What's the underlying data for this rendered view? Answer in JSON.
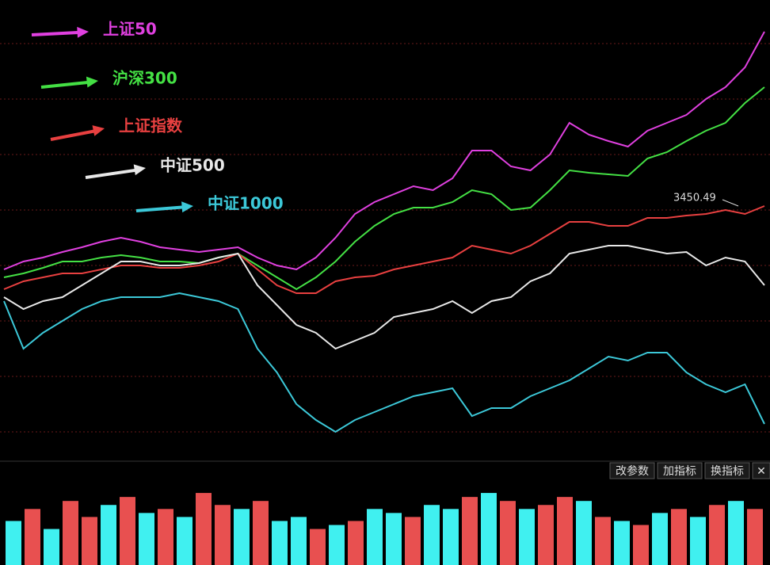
{
  "chart_data": [
    {
      "type": "line",
      "categories": [
        null,
        null,
        null,
        null,
        null,
        null,
        null,
        null,
        null,
        null,
        null,
        null,
        null,
        null,
        null,
        null,
        null,
        null,
        null,
        null,
        null,
        null,
        null,
        null,
        null,
        null,
        null,
        null,
        null,
        null,
        null,
        null,
        null,
        null,
        null,
        null,
        null,
        null,
        null,
        null
      ],
      "ylim": [
        0,
        560
      ],
      "yticks": [
        35,
        105,
        175,
        245,
        315,
        385,
        455,
        525
      ],
      "grid": true,
      "series": [
        {
          "name": "上证50",
          "color": "#e040e0",
          "values": [
            240,
            250,
            255,
            262,
            268,
            275,
            280,
            275,
            268,
            265,
            262,
            265,
            268,
            255,
            245,
            240,
            255,
            280,
            310,
            325,
            335,
            345,
            340,
            355,
            390,
            390,
            370,
            365,
            385,
            425,
            410,
            402,
            395,
            415,
            425,
            435,
            455,
            470,
            495,
            540
          ]
        },
        {
          "name": "沪深300",
          "color": "#44e044",
          "values": [
            230,
            235,
            242,
            250,
            250,
            255,
            258,
            255,
            250,
            250,
            248,
            255,
            260,
            245,
            230,
            215,
            230,
            250,
            275,
            295,
            310,
            318,
            318,
            325,
            340,
            335,
            315,
            318,
            340,
            365,
            362,
            360,
            358,
            380,
            388,
            402,
            415,
            425,
            450,
            470
          ]
        },
        {
          "name": "上证指数",
          "color": "#e84040",
          "values": [
            215,
            225,
            230,
            235,
            235,
            240,
            245,
            245,
            242,
            242,
            245,
            250,
            260,
            240,
            220,
            210,
            210,
            225,
            230,
            232,
            240,
            245,
            250,
            255,
            270,
            265,
            260,
            270,
            285,
            300,
            300,
            295,
            295,
            305,
            305,
            308,
            310,
            315,
            310,
            320
          ]
        },
        {
          "name": "中证500",
          "color": "#e8e8e8",
          "values": [
            205,
            190,
            200,
            205,
            220,
            235,
            250,
            250,
            245,
            245,
            248,
            255,
            260,
            220,
            195,
            170,
            160,
            140,
            150,
            160,
            180,
            185,
            190,
            200,
            185,
            200,
            205,
            225,
            235,
            260,
            265,
            270,
            270,
            265,
            260,
            262,
            245,
            255,
            250,
            220
          ]
        },
        {
          "name": "中证1000",
          "color": "#3cc8d8",
          "values": [
            200,
            140,
            160,
            175,
            190,
            200,
            205,
            205,
            205,
            210,
            205,
            200,
            190,
            140,
            110,
            70,
            50,
            35,
            50,
            60,
            70,
            80,
            85,
            90,
            55,
            65,
            65,
            80,
            90,
            100,
            115,
            130,
            125,
            135,
            135,
            110,
            95,
            85,
            95,
            45
          ]
        }
      ],
      "annotations": [
        {
          "text": "3450.49",
          "series": 2
        }
      ]
    },
    {
      "type": "bar",
      "ylim": [
        0,
        100
      ],
      "values": [
        55,
        70,
        45,
        80,
        60,
        75,
        85,
        65,
        70,
        60,
        90,
        75,
        70,
        80,
        55,
        60,
        45,
        50,
        55,
        70,
        65,
        60,
        75,
        70,
        85,
        90,
        80,
        70,
        75,
        85,
        80,
        60,
        55,
        50,
        65,
        70,
        60,
        75,
        80,
        70
      ],
      "colors": [
        "#40f0f0",
        "#e85050",
        "#40f0f0",
        "#e85050",
        "#e85050",
        "#40f0f0",
        "#e85050",
        "#40f0f0",
        "#e85050",
        "#40f0f0",
        "#e85050",
        "#e85050",
        "#40f0f0",
        "#e85050",
        "#40f0f0",
        "#40f0f0",
        "#e85050",
        "#40f0f0",
        "#e85050",
        "#40f0f0",
        "#40f0f0",
        "#e85050",
        "#40f0f0",
        "#40f0f0",
        "#e85050",
        "#40f0f0",
        "#e85050",
        "#40f0f0",
        "#e85050",
        "#e85050",
        "#40f0f0",
        "#e85050",
        "#40f0f0",
        "#e85050",
        "#40f0f0",
        "#e85050",
        "#40f0f0",
        "#e85050",
        "#40f0f0",
        "#e85050"
      ]
    }
  ],
  "toolbar": [
    "改参数",
    "加指标",
    "换指标",
    "✕"
  ]
}
